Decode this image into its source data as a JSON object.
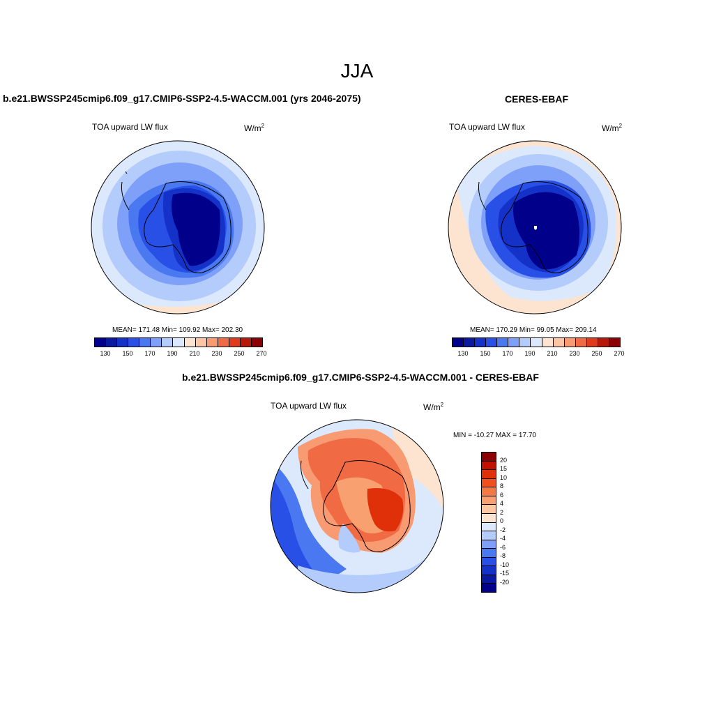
{
  "figure": {
    "title": "JJA"
  },
  "panel_model": {
    "case": "b.e21.BWSSP245cmip6.f09_g17.CMIP6-SSP2-4.5-WACCM.001 (yrs 2046-2075)",
    "variable": "TOA upward LW flux",
    "unit_base": "W/m",
    "unit_exp": "2",
    "stats": "MEAN= 171.48  Min= 109.92  Max= 202.30"
  },
  "panel_obs": {
    "case": "CERES-EBAF",
    "variable": "TOA upward LW flux",
    "unit_base": "W/m",
    "unit_exp": "2",
    "stats": "MEAN= 170.29  Min=  99.05  Max= 209.14"
  },
  "panel_diff": {
    "case": "b.e21.BWSSP245cmip6.f09_g17.CMIP6-SSP2-4.5-WACCM.001 - CERES-EBAF",
    "variable": "TOA upward LW flux",
    "unit_base": "W/m",
    "unit_exp": "2",
    "stats": "MIN = -10.27 MAX =  17.70"
  },
  "colorbar_abs": {
    "colors": [
      "#00008b",
      "#0a1aa0",
      "#1432c8",
      "#2850e6",
      "#4a78f0",
      "#7ea0f8",
      "#b4ccfc",
      "#dce8fc",
      "#fde4d0",
      "#fcc6a6",
      "#f89a72",
      "#f06a44",
      "#e03a1a",
      "#b81808",
      "#8b0000"
    ],
    "ticks": [
      "130",
      "150",
      "170",
      "190",
      "210",
      "230",
      "250",
      "270"
    ]
  },
  "colorbar_diff": {
    "colors": [
      "#8b0000",
      "#c01000",
      "#e0300a",
      "#f05020",
      "#f47a44",
      "#f8a070",
      "#fcc8a4",
      "#fde4d0",
      "#dce8fc",
      "#b4ccfc",
      "#7ea0f8",
      "#4a78f0",
      "#2850e6",
      "#1432c8",
      "#0a1aa0",
      "#00008b"
    ],
    "ticks": [
      "20",
      "15",
      "10",
      "8",
      "6",
      "4",
      "2",
      "0",
      "-2",
      "-4",
      "-6",
      "-8",
      "-10",
      "-15",
      "-20"
    ]
  }
}
